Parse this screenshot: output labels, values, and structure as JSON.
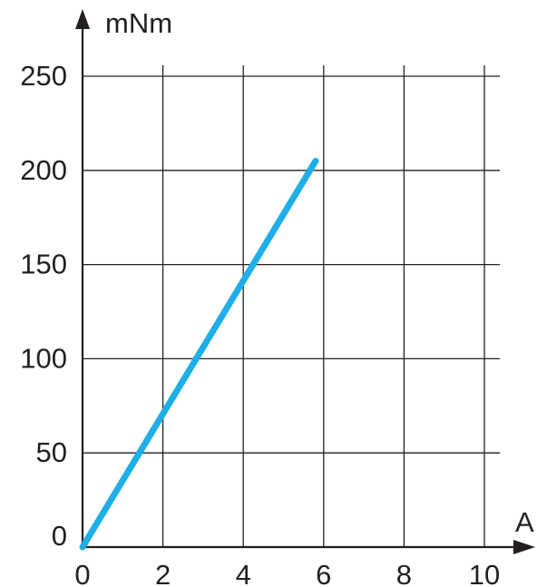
{
  "chart_data": {
    "type": "line",
    "xlabel": "A",
    "ylabel": "mNm",
    "x_ticks": [
      "0",
      "2",
      "4",
      "6",
      "8",
      "10"
    ],
    "y_ticks": [
      "0",
      "50",
      "100",
      "150",
      "200",
      "250"
    ],
    "xlim": [
      0,
      10
    ],
    "ylim": [
      0,
      250
    ],
    "grid": true,
    "series": [
      {
        "x": [
          0,
          5.8
        ],
        "y": [
          0,
          205
        ],
        "color": "#1eaee8"
      }
    ]
  }
}
